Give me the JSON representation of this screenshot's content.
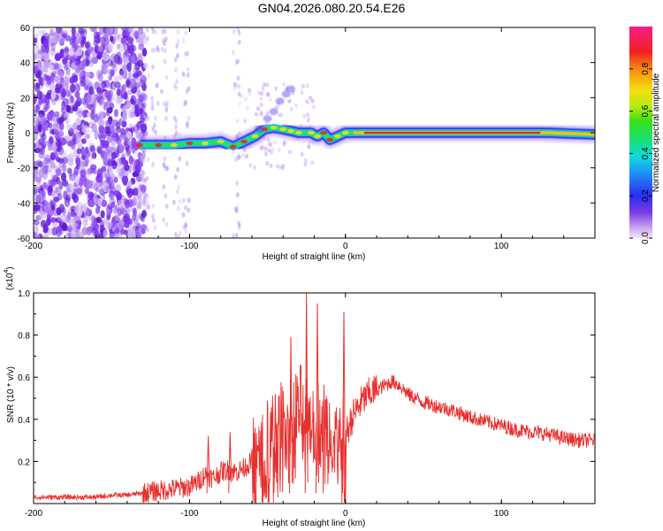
{
  "title": "GN04.2026.080.20.54.E26",
  "chart_data": [
    {
      "type": "heatmap",
      "xlabel": "Height of straight line (km)",
      "ylabel": "Frequency (Hz)",
      "xlim": [
        -200,
        160
      ],
      "ylim": [
        -60,
        60
      ],
      "xticks": [
        -200,
        -100,
        0,
        100
      ],
      "yticks": [
        60,
        40,
        20,
        0,
        -20,
        -40,
        -60
      ],
      "colorbar": {
        "label": "Normalized spectral amplitude",
        "range": [
          0.0,
          1.0
        ],
        "ticks": [
          0.0,
          0.2,
          0.4,
          0.6,
          0.8
        ]
      },
      "ridge": [
        {
          "x": -132,
          "y": -7
        },
        {
          "x": -120,
          "y": -7
        },
        {
          "x": -110,
          "y": -7
        },
        {
          "x": -100,
          "y": -6
        },
        {
          "x": -90,
          "y": -6
        },
        {
          "x": -80,
          "y": -5
        },
        {
          "x": -72,
          "y": -8
        },
        {
          "x": -65,
          "y": -5
        },
        {
          "x": -58,
          "y": -2
        },
        {
          "x": -52,
          "y": 2
        },
        {
          "x": -46,
          "y": 3
        },
        {
          "x": -40,
          "y": 2
        },
        {
          "x": -35,
          "y": 1
        },
        {
          "x": -30,
          "y": 0
        },
        {
          "x": -22,
          "y": 0
        },
        {
          "x": -18,
          "y": -2
        },
        {
          "x": -14,
          "y": 0
        },
        {
          "x": -10,
          "y": -4
        },
        {
          "x": -5,
          "y": -2
        },
        {
          "x": 0,
          "y": 0
        },
        {
          "x": 5,
          "y": 0
        },
        {
          "x": 20,
          "y": 0
        },
        {
          "x": 60,
          "y": 0
        },
        {
          "x": 100,
          "y": 0
        },
        {
          "x": 130,
          "y": 0
        },
        {
          "x": 160,
          "y": -1
        }
      ],
      "noise_region_x": [
        -200,
        -132
      ]
    },
    {
      "type": "line",
      "xlabel": "Height of straight line (km)",
      "ylabel": "SNR (10 * v/v)",
      "scale_label": "(x10",
      "scale_exponent": "4",
      "xlim": [
        -200,
        160
      ],
      "ylim": [
        0,
        1.0
      ],
      "xticks": [
        -200,
        -100,
        0,
        100
      ],
      "yticks": [
        0.2,
        0.4,
        0.6,
        0.8,
        1.0
      ],
      "series": [
        {
          "color": "#e8302e",
          "x": [
            -200,
            -190,
            -180,
            -170,
            -160,
            -150,
            -140,
            -130,
            -120,
            -110,
            -100,
            -95,
            -90,
            -85,
            -80,
            -75,
            -70,
            -65,
            -60,
            -55,
            -50,
            -45,
            -40,
            -35,
            -30,
            -25,
            -20,
            -15,
            -10,
            -5,
            0,
            5,
            10,
            15,
            20,
            25,
            30,
            35,
            40,
            45,
            50,
            60,
            70,
            80,
            90,
            100,
            110,
            120,
            130,
            140,
            150,
            160
          ],
          "values": [
            0.03,
            0.03,
            0.03,
            0.03,
            0.03,
            0.04,
            0.04,
            0.05,
            0.06,
            0.07,
            0.08,
            0.1,
            0.14,
            0.12,
            0.15,
            0.16,
            0.15,
            0.17,
            0.2,
            0.22,
            0.28,
            0.32,
            0.38,
            0.42,
            0.45,
            0.44,
            0.4,
            0.38,
            0.36,
            0.3,
            0.32,
            0.42,
            0.48,
            0.52,
            0.54,
            0.56,
            0.58,
            0.56,
            0.52,
            0.5,
            0.48,
            0.46,
            0.44,
            0.41,
            0.39,
            0.37,
            0.35,
            0.34,
            0.33,
            0.31,
            0.3,
            0.3
          ]
        }
      ],
      "peaks": [
        {
          "x": -88,
          "y": 0.32
        },
        {
          "x": -74,
          "y": 0.34
        },
        {
          "x": -35,
          "y": 0.79
        },
        {
          "x": -25,
          "y": 1.0
        },
        {
          "x": -18,
          "y": 0.95
        },
        {
          "x": -1,
          "y": 0.91
        },
        {
          "x": -58,
          "y": 0.36
        },
        {
          "x": -45,
          "y": 0.52
        }
      ]
    }
  ]
}
